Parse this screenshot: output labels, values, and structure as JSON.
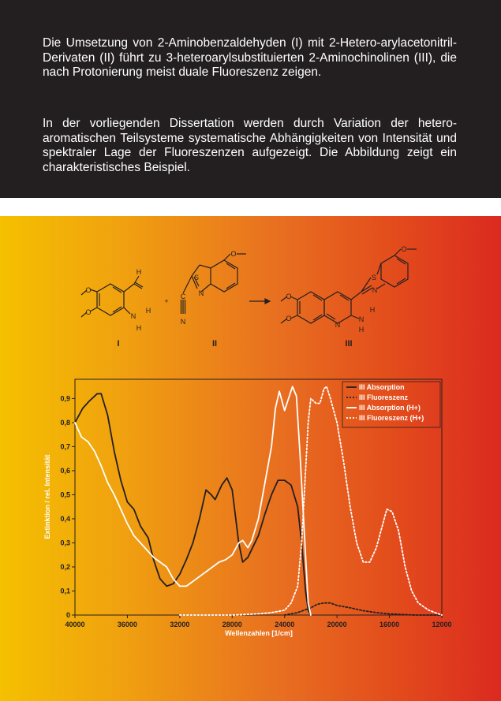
{
  "text": {
    "paragraph1": "Die Umsetzung von 2-Aminobenzaldehyden (I) mit 2-Hetero-arylacetonitril-Derivaten (II) führt zu 3-heteroarylsubstituierten 2-Aminochinolinen (III), die nach Protonierung meist duale Fluoreszenz zeigen.",
    "paragraph2": "In der vorliegenden Dissertation werden durch Variation der hetero-aromatischen Teilsysteme systematische Abhängigkeiten von Intensität und spektraler Lage der Fluoreszenzen aufgezeigt. Die Abbildung zeigt ein charakteristisches Beispiel."
  },
  "scheme": {
    "label_I": "I",
    "label_II": "II",
    "label_III": "III",
    "plus": "+",
    "atoms": {
      "H": "H",
      "N": "N",
      "S": "S",
      "C": "C",
      "O": "O"
    }
  },
  "colors": {
    "top_panel": "#231f20",
    "gradient_left": "#f4c000",
    "gradient_right": "#db2a20",
    "dark_series": "#231f20",
    "light_series": "#ffffff"
  },
  "chart_data": {
    "type": "line",
    "xlabel": "Wellenzahlen [1/cm]",
    "ylabel": "Extinktion / rel. Intensität",
    "xlim": [
      40000,
      12000
    ],
    "ylim": [
      0,
      0.98
    ],
    "x_ticks": [
      "40000",
      "36000",
      "32000",
      "28000",
      "24000",
      "20000",
      "16000",
      "12000"
    ],
    "y_ticks": [
      "0",
      "0,1",
      "0,2",
      "0,3",
      "0,4",
      "0,5",
      "0,6",
      "0,7",
      "0,8",
      "0,9"
    ],
    "legend_position": "top-right",
    "series": [
      {
        "name": "III Absorption",
        "color": "#231f20",
        "style": "solid",
        "points": [
          [
            40000,
            0.8
          ],
          [
            39400,
            0.86
          ],
          [
            38900,
            0.89
          ],
          [
            38300,
            0.92
          ],
          [
            38000,
            0.92
          ],
          [
            37500,
            0.83
          ],
          [
            37000,
            0.68
          ],
          [
            36500,
            0.56
          ],
          [
            36000,
            0.47
          ],
          [
            35500,
            0.44
          ],
          [
            35000,
            0.37
          ],
          [
            34400,
            0.32
          ],
          [
            34000,
            0.23
          ],
          [
            33500,
            0.15
          ],
          [
            33000,
            0.12
          ],
          [
            32500,
            0.13
          ],
          [
            32000,
            0.17
          ],
          [
            31500,
            0.23
          ],
          [
            31000,
            0.3
          ],
          [
            30500,
            0.4
          ],
          [
            30000,
            0.52
          ],
          [
            29600,
            0.5
          ],
          [
            29300,
            0.48
          ],
          [
            28800,
            0.54
          ],
          [
            28400,
            0.57
          ],
          [
            28000,
            0.52
          ],
          [
            27500,
            0.3
          ],
          [
            27200,
            0.22
          ],
          [
            26800,
            0.24
          ],
          [
            26000,
            0.33
          ],
          [
            25500,
            0.42
          ],
          [
            25000,
            0.5
          ],
          [
            24500,
            0.56
          ],
          [
            24000,
            0.56
          ],
          [
            23500,
            0.54
          ],
          [
            23000,
            0.45
          ],
          [
            22700,
            0.3
          ],
          [
            22400,
            0.1
          ],
          [
            22200,
            0.02
          ],
          [
            22000,
            0.0
          ]
        ]
      },
      {
        "name": "III Fluoreszenz",
        "color": "#231f20",
        "style": "dotted",
        "points": [
          [
            24000,
            0.0
          ],
          [
            23000,
            0.01
          ],
          [
            22000,
            0.03
          ],
          [
            21500,
            0.045
          ],
          [
            21000,
            0.05
          ],
          [
            20500,
            0.05
          ],
          [
            20000,
            0.04
          ],
          [
            19000,
            0.03
          ],
          [
            18000,
            0.018
          ],
          [
            17000,
            0.01
          ],
          [
            16000,
            0.005
          ],
          [
            14000,
            0.0
          ],
          [
            12000,
            0.0
          ]
        ]
      },
      {
        "name": "III Absorption (H+)",
        "color": "#ffffff",
        "style": "solid",
        "points": [
          [
            40000,
            0.8
          ],
          [
            39500,
            0.74
          ],
          [
            39000,
            0.72
          ],
          [
            38500,
            0.68
          ],
          [
            38000,
            0.62
          ],
          [
            37500,
            0.55
          ],
          [
            37000,
            0.5
          ],
          [
            36500,
            0.44
          ],
          [
            36000,
            0.38
          ],
          [
            35500,
            0.33
          ],
          [
            35000,
            0.3
          ],
          [
            34500,
            0.27
          ],
          [
            34000,
            0.24
          ],
          [
            33500,
            0.22
          ],
          [
            33000,
            0.2
          ],
          [
            32500,
            0.15
          ],
          [
            32000,
            0.12
          ],
          [
            31500,
            0.12
          ],
          [
            31000,
            0.14
          ],
          [
            30000,
            0.18
          ],
          [
            29000,
            0.22
          ],
          [
            28500,
            0.23
          ],
          [
            28000,
            0.25
          ],
          [
            27500,
            0.3
          ],
          [
            27200,
            0.31
          ],
          [
            26800,
            0.28
          ],
          [
            26500,
            0.31
          ],
          [
            26000,
            0.4
          ],
          [
            25500,
            0.55
          ],
          [
            25000,
            0.7
          ],
          [
            24700,
            0.86
          ],
          [
            24400,
            0.93
          ],
          [
            24000,
            0.85
          ],
          [
            23700,
            0.9
          ],
          [
            23400,
            0.95
          ],
          [
            23100,
            0.91
          ],
          [
            22800,
            0.65
          ],
          [
            22500,
            0.35
          ],
          [
            22200,
            0.05
          ],
          [
            22000,
            0.0
          ]
        ]
      },
      {
        "name": "III Fluoreszenz (H+)",
        "color": "#ffffff",
        "style": "dotted",
        "points": [
          [
            32000,
            0.0
          ],
          [
            28000,
            0.0
          ],
          [
            26000,
            0.005
          ],
          [
            25000,
            0.01
          ],
          [
            24000,
            0.02
          ],
          [
            23500,
            0.05
          ],
          [
            23000,
            0.12
          ],
          [
            22700,
            0.3
          ],
          [
            22400,
            0.6
          ],
          [
            22200,
            0.8
          ],
          [
            22000,
            0.9
          ],
          [
            21600,
            0.88
          ],
          [
            21300,
            0.88
          ],
          [
            21000,
            0.94
          ],
          [
            20800,
            0.95
          ],
          [
            20500,
            0.9
          ],
          [
            20000,
            0.8
          ],
          [
            19500,
            0.64
          ],
          [
            19000,
            0.45
          ],
          [
            18500,
            0.3
          ],
          [
            18000,
            0.22
          ],
          [
            17500,
            0.22
          ],
          [
            17000,
            0.28
          ],
          [
            16500,
            0.38
          ],
          [
            16200,
            0.44
          ],
          [
            15800,
            0.43
          ],
          [
            15300,
            0.35
          ],
          [
            14800,
            0.2
          ],
          [
            14300,
            0.1
          ],
          [
            13800,
            0.05
          ],
          [
            13000,
            0.02
          ],
          [
            12000,
            0.0
          ]
        ]
      }
    ]
  }
}
